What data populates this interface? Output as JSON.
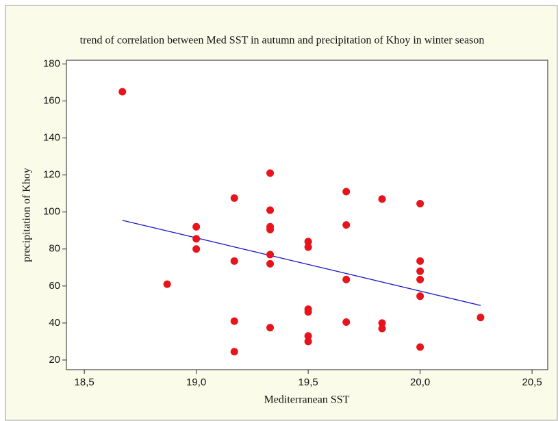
{
  "chart_data": {
    "type": "scatter",
    "title": "trend of correlation between Med SST in autumn  and precipitation of Khoy in winter season",
    "x_label": "Mediterranean SST",
    "y_label": "precipitation of Khoy",
    "color": "#e8141c",
    "x": [
      18.67,
      18.87,
      19.0,
      19.0,
      19.0,
      19.17,
      19.17,
      19.17,
      19.17,
      19.33,
      19.33,
      19.33,
      19.33,
      19.33,
      19.33,
      19.33,
      19.5,
      19.5,
      19.5,
      19.5,
      19.5,
      19.5,
      19.67,
      19.67,
      19.67,
      19.67,
      19.83,
      19.83,
      19.83,
      20.0,
      20.0,
      20.0,
      20.0,
      20.0,
      20.0,
      20.27
    ],
    "values": [
      165,
      61,
      92,
      85.5,
      80,
      107.5,
      73.5,
      41,
      24.5,
      121,
      101,
      92,
      90.5,
      77,
      72,
      37.5,
      84,
      81,
      47.5,
      46,
      33,
      30,
      111,
      93,
      63.5,
      40.5,
      107,
      40,
      37,
      104.5,
      73.5,
      68,
      63.5,
      54.5,
      27,
      43
    ],
    "trend_line": {
      "x": [
        18.67,
        20.27
      ],
      "values": [
        95.5,
        49.5
      ],
      "color": "#1a1acc"
    },
    "xlim": [
      18.42,
      20.57
    ],
    "ylim": [
      14.8,
      182
    ],
    "xticks": [
      {
        "value": 18.5,
        "label": "18,5"
      },
      {
        "value": 19.0,
        "label": "19,0"
      },
      {
        "value": 19.5,
        "label": "19,5"
      },
      {
        "value": 20.0,
        "label": "20,0"
      },
      {
        "value": 20.5,
        "label": "20,5"
      }
    ],
    "yticks": [
      20,
      40,
      60,
      80,
      100,
      120,
      140,
      160,
      180
    ]
  }
}
